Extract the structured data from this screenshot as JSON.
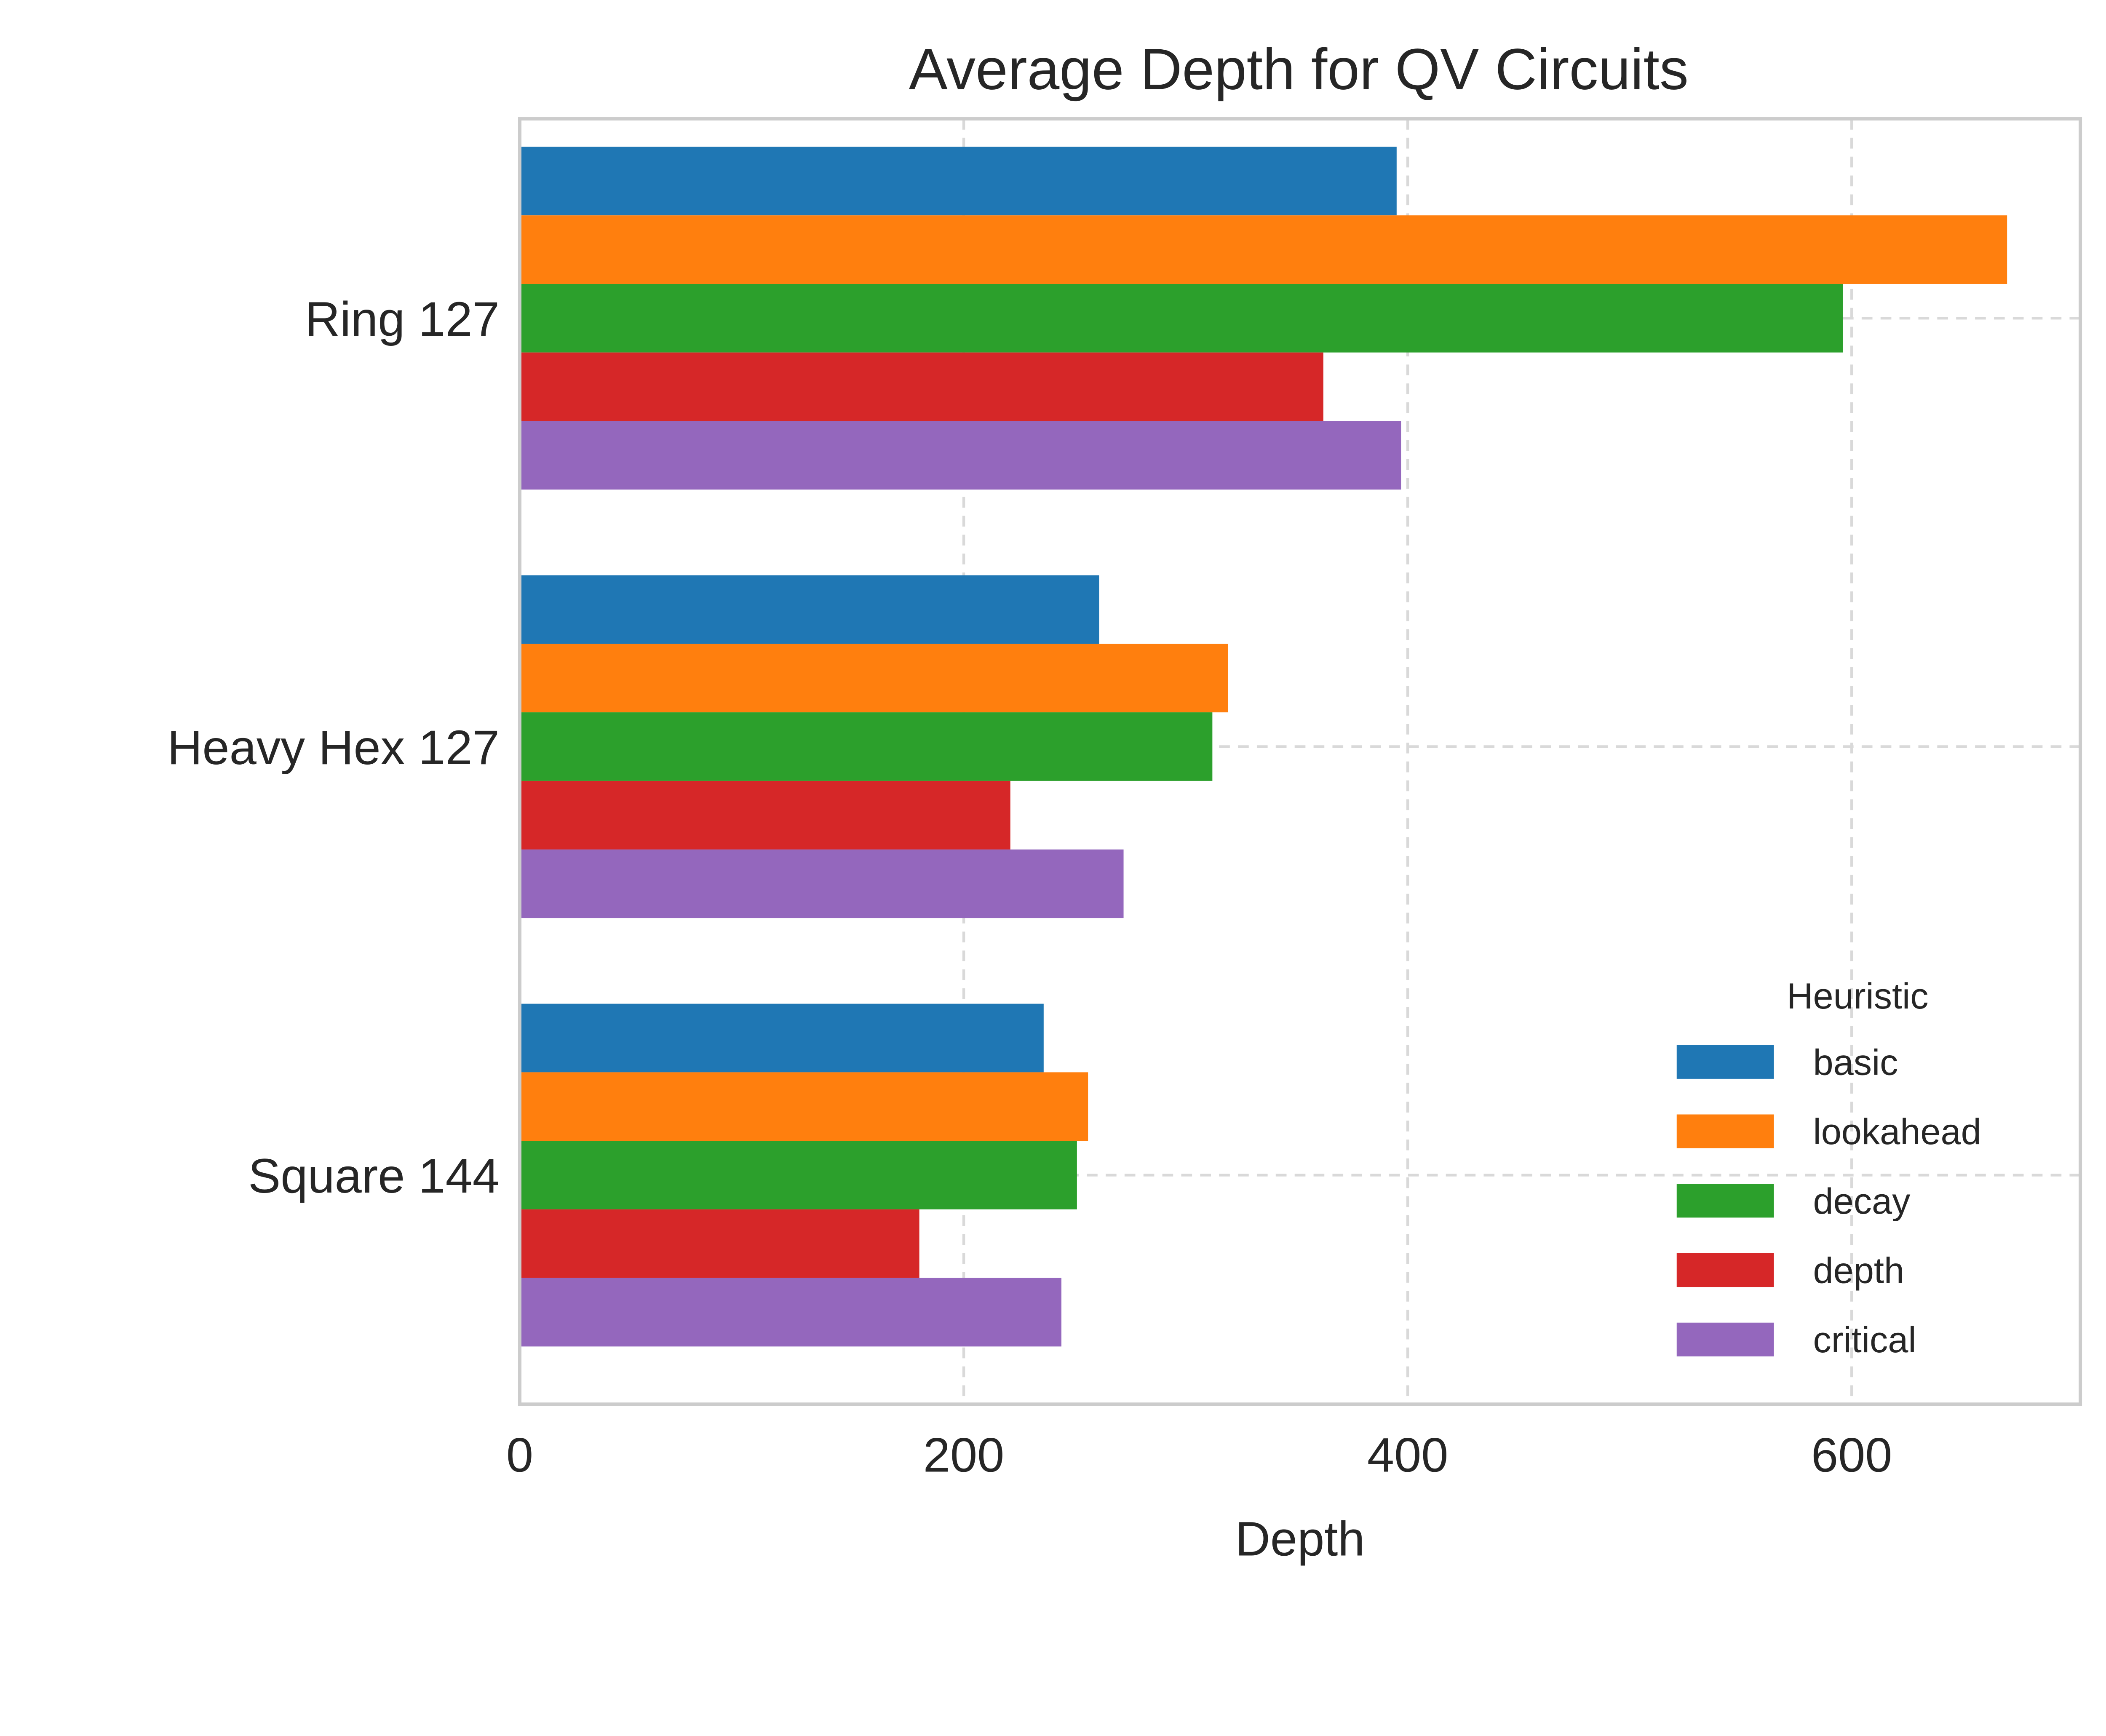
{
  "chart_data": {
    "type": "bar",
    "orientation": "horizontal",
    "title": "Average Depth for QV Circuits",
    "xlabel": "Depth",
    "ylabel": "",
    "xlim": [
      0,
      703
    ],
    "xticks": [
      0,
      200,
      400,
      600
    ],
    "xtick_labels": [
      "0",
      "200",
      "400",
      "600"
    ],
    "grid": true,
    "categories": [
      "Ring 127",
      "Heavy Hex 127",
      "Square 144"
    ],
    "legend": {
      "title": "Heuristic",
      "placement": "lower-right"
    },
    "series": [
      {
        "name": "basic",
        "color": "#1f77b4",
        "values": [
          395,
          261,
          236
        ]
      },
      {
        "name": "lookahead",
        "color": "#ff7f0e",
        "values": [
          670,
          319,
          256
        ]
      },
      {
        "name": "decay",
        "color": "#2ca02c",
        "values": [
          596,
          312,
          251
        ]
      },
      {
        "name": "depth",
        "color": "#d62728",
        "values": [
          362,
          221,
          180
        ]
      },
      {
        "name": "critical",
        "color": "#9467bd",
        "values": [
          397,
          272,
          244
        ]
      }
    ]
  }
}
